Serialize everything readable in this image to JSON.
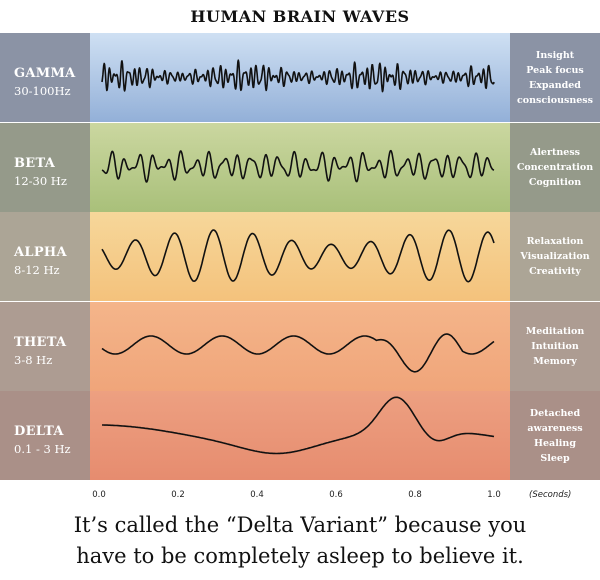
{
  "title": "HUMAN BRAIN WAVES",
  "waves": [
    {
      "name": "GAMMA",
      "range": "30-100Hz",
      "effects": [
        "Insight",
        "Peak focus",
        "Expanded",
        "consciousness"
      ],
      "colors": {
        "left": "#8b93a5",
        "mid_top": "#cfe0f3",
        "mid_bottom": "#93b0d8",
        "right": "#8b93a5"
      }
    },
    {
      "name": "BETA",
      "range": "12-30 Hz",
      "effects": [
        "Alertness",
        "Concentration",
        "Cognition"
      ],
      "colors": {
        "left": "#959a8a",
        "mid_top": "#cbd7a0",
        "mid_bottom": "#a9c07a",
        "right": "#959a8a"
      }
    },
    {
      "name": "ALPHA",
      "range": "8-12 Hz",
      "effects": [
        "Relaxation",
        "Visualization",
        "Creativity"
      ],
      "colors": {
        "left": "#aca596",
        "mid_top": "#f6d79a",
        "mid_bottom": "#f4c27c",
        "right": "#aca596"
      }
    },
    {
      "name": "THETA",
      "range": "3-8 Hz",
      "effects": [
        "Meditation",
        "Intuition",
        "Memory"
      ],
      "colors": {
        "left": "#ad9c92",
        "mid_top": "#f4b58a",
        "mid_bottom": "#f0a57a",
        "right": "#ad9c92"
      }
    },
    {
      "name": "DELTA",
      "range": "0.1 - 3 Hz",
      "effects": [
        "Detached",
        "awareness",
        "Healing",
        "Sleep"
      ],
      "colors": {
        "left": "#aa9088",
        "mid_top": "#eda081",
        "mid_bottom": "#e68c6f",
        "right": "#aa9088"
      }
    }
  ],
  "axis": {
    "ticks": [
      "0.0",
      "0.2",
      "0.4",
      "0.6",
      "0.8",
      "1.0"
    ],
    "unit": "(Seconds)"
  },
  "caption_lines": [
    "It’s called the “Delta Variant” because you",
    "have to be completely asleep to believe it."
  ]
}
